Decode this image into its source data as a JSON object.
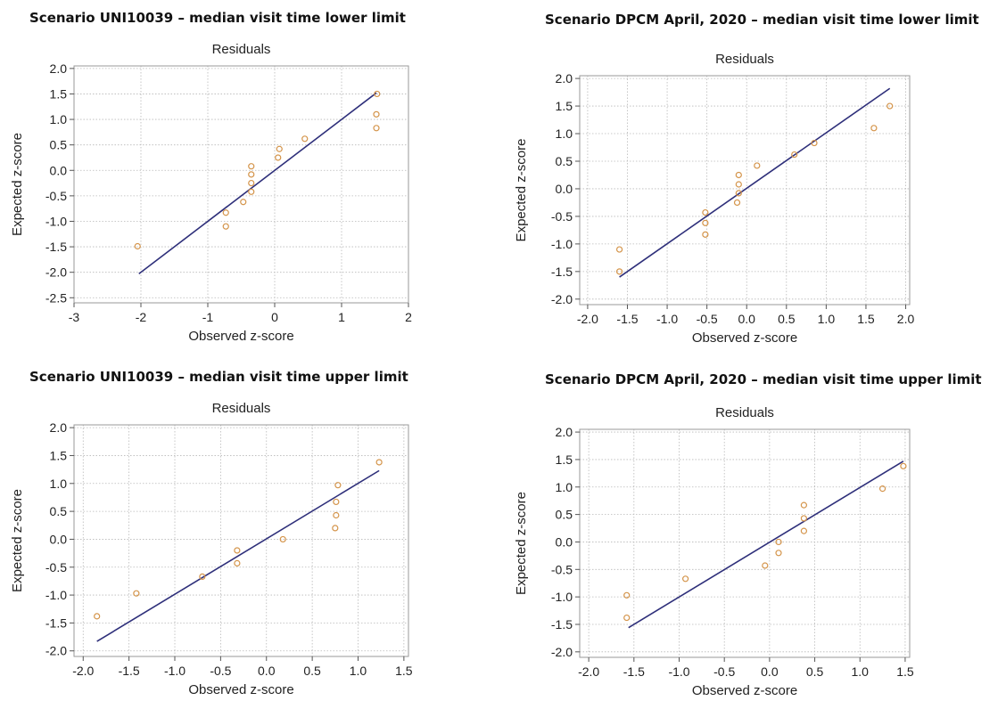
{
  "chart_data": [
    {
      "type": "scatter",
      "title": "Scenario UNI10039 – median visit time lower limit",
      "subtitle": "Residuals",
      "xlabel": "Observed z-score",
      "ylabel": "Expected z-score",
      "xlim": [
        -3,
        2
      ],
      "ylim": [
        -2.6,
        2.05
      ],
      "xticks": [
        -3,
        -2,
        -1,
        0,
        1,
        2
      ],
      "yticks": [
        -2.5,
        -2.0,
        -1.5,
        -1.0,
        -0.5,
        0.0,
        0.5,
        1.0,
        1.5,
        2.0
      ],
      "xtick_labels": [
        "-3",
        "-2",
        "-1",
        "0",
        "1",
        "2"
      ],
      "ytick_labels": [
        "-2.5",
        "-2.0",
        "-1.5",
        "-1.0",
        "-0.5",
        "0.0",
        "0.5",
        "1.0",
        "1.5",
        "2.0"
      ],
      "grid": true,
      "points": [
        [
          -2.05,
          -1.49
        ],
        [
          -0.73,
          -0.83
        ],
        [
          -0.73,
          -1.1
        ],
        [
          -0.47,
          -0.62
        ],
        [
          -0.35,
          0.08
        ],
        [
          -0.35,
          -0.08
        ],
        [
          -0.35,
          -0.25
        ],
        [
          -0.35,
          -0.42
        ],
        [
          0.05,
          0.25
        ],
        [
          0.07,
          0.42
        ],
        [
          0.45,
          0.62
        ],
        [
          1.52,
          0.83
        ],
        [
          1.52,
          1.1
        ],
        [
          1.53,
          1.5
        ]
      ],
      "line": [
        [
          -2.03,
          -2.03
        ],
        [
          1.52,
          1.52
        ]
      ],
      "colors": {
        "points": "#d4944a",
        "line": "#2e2f7a"
      }
    },
    {
      "type": "scatter",
      "title": "Scenario DPCM April, 2020 – median visit time lower limit",
      "subtitle": "Residuals",
      "xlabel": "Observed z-score",
      "ylabel": "Expected z-score",
      "xlim": [
        -2.1,
        2.05
      ],
      "ylim": [
        -2.1,
        2.05
      ],
      "xticks": [
        -2.0,
        -1.5,
        -1.0,
        -0.5,
        0.0,
        0.5,
        1.0,
        1.5,
        2.0
      ],
      "yticks": [
        -2.0,
        -1.5,
        -1.0,
        -0.5,
        0.0,
        0.5,
        1.0,
        1.5,
        2.0
      ],
      "xtick_labels": [
        "-2.0",
        "-1.5",
        "-1.0",
        "-0.5",
        "0.0",
        "0.5",
        "1.0",
        "1.5",
        "2.0"
      ],
      "ytick_labels": [
        "-2.0",
        "-1.5",
        "-1.0",
        "-0.5",
        "0.0",
        "0.5",
        "1.0",
        "1.5",
        "2.0"
      ],
      "grid": true,
      "points": [
        [
          -1.6,
          -1.1
        ],
        [
          -1.6,
          -1.5
        ],
        [
          -0.52,
          -0.43
        ],
        [
          -0.52,
          -0.62
        ],
        [
          -0.52,
          -0.83
        ],
        [
          -0.1,
          0.25
        ],
        [
          -0.1,
          0.08
        ],
        [
          -0.1,
          -0.08
        ],
        [
          -0.12,
          -0.25
        ],
        [
          0.13,
          0.42
        ],
        [
          0.6,
          0.62
        ],
        [
          0.85,
          0.83
        ],
        [
          1.6,
          1.1
        ],
        [
          1.8,
          1.5
        ]
      ],
      "line": [
        [
          -1.6,
          -1.6
        ],
        [
          1.8,
          1.82
        ]
      ],
      "colors": {
        "points": "#d4944a",
        "line": "#2e2f7a"
      }
    },
    {
      "type": "scatter",
      "title": "Scenario UNI10039 – median visit time upper limit",
      "subtitle": "Residuals",
      "xlabel": "Observed z-score",
      "ylabel": "Expected z-score",
      "xlim": [
        -2.1,
        1.55
      ],
      "ylim": [
        -2.1,
        2.05
      ],
      "xticks": [
        -2.0,
        -1.5,
        -1.0,
        -0.5,
        0.0,
        0.5,
        1.0,
        1.5
      ],
      "yticks": [
        -2.0,
        -1.5,
        -1.0,
        -0.5,
        0.0,
        0.5,
        1.0,
        1.5,
        2.0
      ],
      "xtick_labels": [
        "-2.0",
        "-1.5",
        "-1.0",
        "-0.5",
        "0.0",
        "0.5",
        "1.0",
        "1.5"
      ],
      "ytick_labels": [
        "-2.0",
        "-1.5",
        "-1.0",
        "-0.5",
        "0.0",
        "0.5",
        "1.0",
        "1.5",
        "2.0"
      ],
      "grid": true,
      "points": [
        [
          -1.85,
          -1.38
        ],
        [
          -1.42,
          -0.97
        ],
        [
          -0.7,
          -0.67
        ],
        [
          -0.32,
          -0.2
        ],
        [
          -0.32,
          -0.43
        ],
        [
          0.18,
          0.0
        ],
        [
          0.75,
          0.2
        ],
        [
          0.76,
          0.43
        ],
        [
          0.76,
          0.67
        ],
        [
          0.78,
          0.97
        ],
        [
          1.23,
          1.38
        ]
      ],
      "line": [
        [
          -1.85,
          -1.83
        ],
        [
          1.23,
          1.23
        ]
      ],
      "colors": {
        "points": "#d4944a",
        "line": "#2e2f7a"
      }
    },
    {
      "type": "scatter",
      "title": "Scenario DPCM April, 2020 – median visit time upper limit",
      "subtitle": "Residuals",
      "xlabel": "Observed z-score",
      "ylabel": "Expected z-score",
      "xlim": [
        -2.1,
        1.55
      ],
      "ylim": [
        -2.1,
        2.05
      ],
      "xticks": [
        -2.0,
        -1.5,
        -1.0,
        -0.5,
        0.0,
        0.5,
        1.0,
        1.5
      ],
      "yticks": [
        -2.0,
        -1.5,
        -1.0,
        -0.5,
        0.0,
        0.5,
        1.0,
        1.5,
        2.0
      ],
      "xtick_labels": [
        "-2.0",
        "-1.5",
        "-1.0",
        "-0.5",
        "0.0",
        "0.5",
        "1.0",
        "1.5"
      ],
      "ytick_labels": [
        "-2.0",
        "-1.5",
        "-1.0",
        "-0.5",
        "0.0",
        "0.5",
        "1.0",
        "1.5",
        "2.0"
      ],
      "grid": true,
      "points": [
        [
          -1.58,
          -0.97
        ],
        [
          -1.58,
          -1.38
        ],
        [
          -0.93,
          -0.67
        ],
        [
          -0.05,
          -0.43
        ],
        [
          0.1,
          -0.2
        ],
        [
          0.1,
          0.0
        ],
        [
          0.38,
          0.2
        ],
        [
          0.38,
          0.43
        ],
        [
          0.38,
          0.67
        ],
        [
          1.25,
          0.97
        ],
        [
          1.48,
          1.38
        ]
      ],
      "line": [
        [
          -1.56,
          -1.56
        ],
        [
          1.48,
          1.47
        ]
      ],
      "colors": {
        "points": "#d4944a",
        "line": "#2e2f7a"
      }
    }
  ]
}
